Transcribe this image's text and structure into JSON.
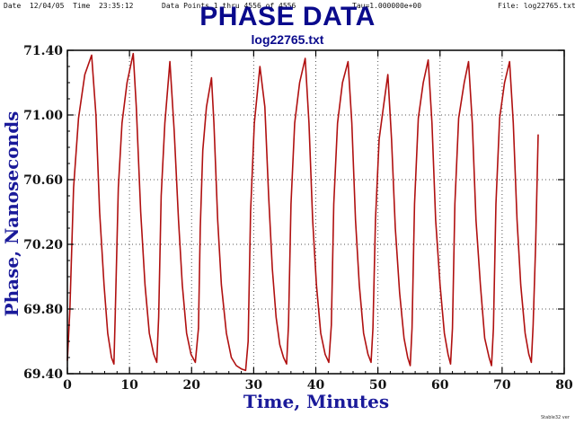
{
  "header": {
    "date": "Date  12/04/05  Time  23:35:12",
    "points": "Data Points 1 thru 4556 of 4556",
    "tau": "Tau=1.000000e+00",
    "file": "File: log22765.txt"
  },
  "credit": "Stable32 ver",
  "chart_data": {
    "type": "line",
    "title": "PHASE DATA",
    "subtitle": "log22765.txt",
    "xlabel": "Time, Minutes",
    "ylabel": "Phase, Nanoseconds",
    "xlim": [
      0,
      80
    ],
    "ylim": [
      69.4,
      71.4
    ],
    "xticks": [
      0,
      10,
      20,
      30,
      40,
      50,
      60,
      70,
      80
    ],
    "yticks": [
      "69.40",
      "69.80",
      "70.20",
      "70.60",
      "71.00",
      "71.40"
    ],
    "grid": true,
    "line_color": "#b01010",
    "series": [
      {
        "x": [
          0.0,
          0.4,
          1.0,
          1.8,
          2.8,
          3.9,
          4.6,
          5.2,
          5.9,
          6.5,
          7.1,
          7.5,
          7.7,
          8.2,
          8.8,
          9.6,
          10.6,
          11.1,
          11.8,
          12.5,
          13.2,
          13.9,
          14.4,
          14.7,
          15.1,
          15.7,
          16.5,
          17.2,
          17.9,
          18.5,
          19.2,
          19.9,
          20.6,
          21.1,
          21.4,
          21.8,
          22.4,
          23.2,
          23.6,
          24.2,
          24.8,
          25.6,
          26.4,
          27.2,
          28.0,
          28.7,
          29.1,
          29.5,
          30.1,
          31.0,
          31.8,
          32.4,
          33.0,
          33.6,
          34.2,
          34.8,
          35.3,
          35.6,
          36.0,
          36.6,
          37.4,
          38.3,
          38.9,
          39.5,
          40.1,
          40.8,
          41.5,
          42.1,
          42.5,
          42.9,
          43.5,
          44.3,
          45.2,
          45.8,
          46.4,
          47.0,
          47.7,
          48.4,
          48.9,
          49.2,
          49.6,
          50.2,
          51.0,
          51.6,
          52.2,
          52.8,
          53.5,
          54.2,
          54.8,
          55.2,
          55.5,
          55.9,
          56.5,
          57.3,
          58.1,
          58.7,
          59.3,
          60.0,
          60.7,
          61.3,
          61.7,
          62.0,
          62.4,
          63.0,
          63.9,
          64.6,
          65.2,
          65.8,
          66.5,
          67.2,
          67.9,
          68.3,
          68.6,
          69.0,
          69.6,
          70.4,
          71.2,
          71.8,
          72.4,
          73.0,
          73.7,
          74.3,
          74.7,
          75.0,
          75.4,
          75.8
        ],
        "y": [
          69.48,
          69.8,
          70.55,
          70.98,
          71.25,
          71.37,
          71.0,
          70.4,
          69.95,
          69.65,
          69.5,
          69.46,
          69.75,
          70.55,
          70.95,
          71.2,
          71.38,
          71.05,
          70.4,
          69.95,
          69.65,
          69.52,
          69.47,
          69.75,
          70.5,
          70.95,
          71.33,
          70.9,
          70.35,
          69.95,
          69.65,
          69.52,
          69.47,
          69.68,
          70.3,
          70.78,
          71.05,
          71.23,
          70.95,
          70.35,
          69.95,
          69.65,
          69.5,
          69.45,
          69.43,
          69.42,
          69.6,
          70.4,
          70.95,
          71.3,
          71.05,
          70.5,
          70.05,
          69.75,
          69.58,
          69.5,
          69.46,
          69.7,
          70.45,
          70.95,
          71.2,
          71.35,
          70.95,
          70.35,
          69.95,
          69.65,
          69.52,
          69.47,
          69.7,
          70.45,
          70.95,
          71.2,
          71.33,
          70.95,
          70.35,
          69.95,
          69.65,
          69.52,
          69.47,
          69.68,
          70.35,
          70.85,
          71.08,
          71.25,
          70.85,
          70.3,
          69.9,
          69.62,
          69.5,
          69.45,
          69.68,
          70.45,
          70.98,
          71.2,
          71.34,
          70.95,
          70.35,
          69.95,
          69.65,
          69.52,
          69.46,
          69.68,
          70.45,
          70.98,
          71.2,
          71.33,
          70.95,
          70.35,
          69.95,
          69.62,
          69.5,
          69.45,
          69.68,
          70.45,
          70.98,
          71.2,
          71.33,
          70.95,
          70.35,
          69.95,
          69.65,
          69.52,
          69.47,
          69.7,
          70.2,
          70.88
        ]
      }
    ]
  }
}
